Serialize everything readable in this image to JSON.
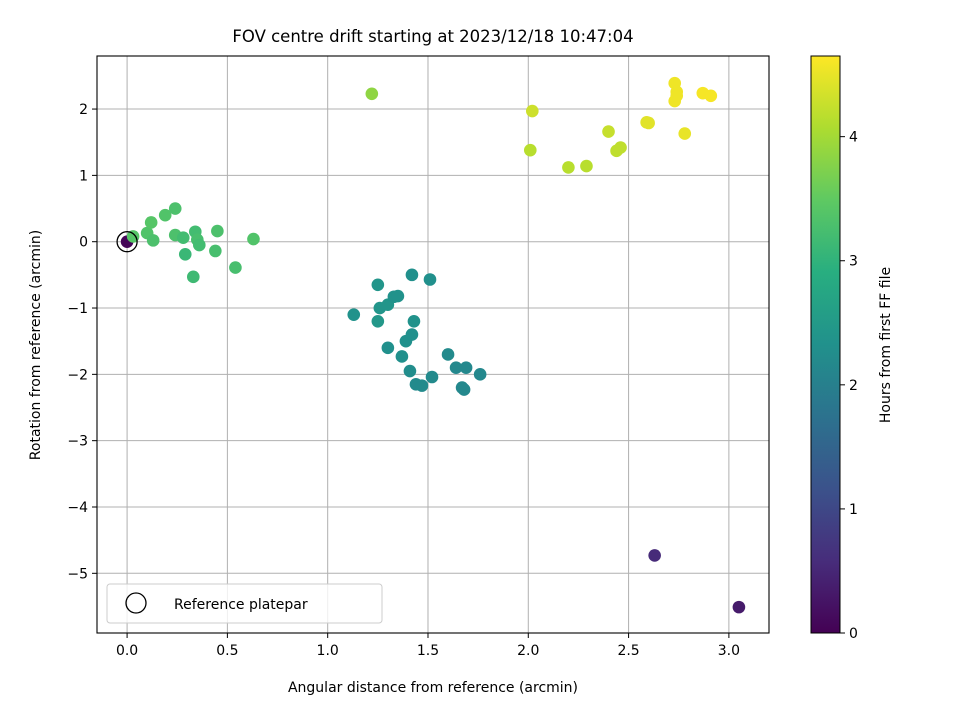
{
  "chart_data": {
    "type": "scatter",
    "title": "FOV centre drift starting at 2023/12/18 10:47:04",
    "xlabel": "Angular distance from reference (arcmin)",
    "ylabel": "Rotation from reference (arcmin)",
    "xlim": [
      -0.15,
      3.2
    ],
    "ylim": [
      -5.9,
      2.8
    ],
    "xticks": [
      "0.0",
      "0.5",
      "1.0",
      "1.5",
      "2.0",
      "2.5",
      "3.0"
    ],
    "xtick_values": [
      0,
      0.5,
      1.0,
      1.5,
      2.0,
      2.5,
      3.0
    ],
    "yticks": [
      "−5",
      "−4",
      "−3",
      "−2",
      "−1",
      "0",
      "1",
      "2"
    ],
    "ytick_values": [
      -5,
      -4,
      -3,
      -2,
      -1,
      0,
      1,
      2
    ],
    "grid": true,
    "legend": {
      "placement": "lower-left",
      "entries": [
        "Reference platepar"
      ]
    },
    "colorbar": {
      "label": "Hours from first FF file",
      "colormap": "viridis",
      "range": [
        0,
        4.65
      ],
      "ticks": [
        "0",
        "1",
        "2",
        "3",
        "4"
      ],
      "tick_values": [
        0,
        1,
        2,
        3,
        4
      ]
    },
    "reference_point": {
      "x": 0.0,
      "y": 0.0
    },
    "points": [
      {
        "x": 0.0,
        "y": 0.0,
        "hours": 0.05
      },
      {
        "x": 2.63,
        "y": -4.73,
        "hours": 0.55
      },
      {
        "x": 3.05,
        "y": -5.51,
        "hours": 0.35
      },
      {
        "x": 1.13,
        "y": -1.1,
        "hours": 2.35
      },
      {
        "x": 1.25,
        "y": -0.65,
        "hours": 2.4
      },
      {
        "x": 1.26,
        "y": -1.0,
        "hours": 2.4
      },
      {
        "x": 1.25,
        "y": -1.2,
        "hours": 2.45
      },
      {
        "x": 1.3,
        "y": -0.95,
        "hours": 2.4
      },
      {
        "x": 1.33,
        "y": -0.83,
        "hours": 2.35
      },
      {
        "x": 1.35,
        "y": -0.82,
        "hours": 2.35
      },
      {
        "x": 1.3,
        "y": -1.6,
        "hours": 2.3
      },
      {
        "x": 1.37,
        "y": -1.73,
        "hours": 2.3
      },
      {
        "x": 1.39,
        "y": -1.5,
        "hours": 2.3
      },
      {
        "x": 1.42,
        "y": -1.4,
        "hours": 2.3
      },
      {
        "x": 1.43,
        "y": -1.2,
        "hours": 2.35
      },
      {
        "x": 1.42,
        "y": -0.5,
        "hours": 2.3
      },
      {
        "x": 1.51,
        "y": -0.57,
        "hours": 2.3
      },
      {
        "x": 1.41,
        "y": -1.95,
        "hours": 2.25
      },
      {
        "x": 1.44,
        "y": -2.15,
        "hours": 2.2
      },
      {
        "x": 1.47,
        "y": -2.17,
        "hours": 2.2
      },
      {
        "x": 1.52,
        "y": -2.04,
        "hours": 2.2
      },
      {
        "x": 1.6,
        "y": -1.7,
        "hours": 2.2
      },
      {
        "x": 1.64,
        "y": -1.9,
        "hours": 2.15
      },
      {
        "x": 1.67,
        "y": -2.2,
        "hours": 2.15
      },
      {
        "x": 1.68,
        "y": -2.23,
        "hours": 2.15
      },
      {
        "x": 1.69,
        "y": -1.9,
        "hours": 2.15
      },
      {
        "x": 1.76,
        "y": -2.0,
        "hours": 2.15
      },
      {
        "x": 0.03,
        "y": 0.08,
        "hours": 3.4
      },
      {
        "x": 0.1,
        "y": 0.13,
        "hours": 3.35
      },
      {
        "x": 0.12,
        "y": 0.29,
        "hours": 3.4
      },
      {
        "x": 0.13,
        "y": 0.02,
        "hours": 3.3
      },
      {
        "x": 0.19,
        "y": 0.4,
        "hours": 3.35
      },
      {
        "x": 0.24,
        "y": 0.5,
        "hours": 3.3
      },
      {
        "x": 0.24,
        "y": 0.1,
        "hours": 3.3
      },
      {
        "x": 0.28,
        "y": 0.06,
        "hours": 3.2
      },
      {
        "x": 0.29,
        "y": -0.19,
        "hours": 3.1
      },
      {
        "x": 0.33,
        "y": -0.53,
        "hours": 3.15
      },
      {
        "x": 0.34,
        "y": 0.15,
        "hours": 3.2
      },
      {
        "x": 0.35,
        "y": 0.03,
        "hours": 3.25
      },
      {
        "x": 0.36,
        "y": -0.05,
        "hours": 3.2
      },
      {
        "x": 0.44,
        "y": -0.14,
        "hours": 3.25
      },
      {
        "x": 0.45,
        "y": 0.16,
        "hours": 3.3
      },
      {
        "x": 0.54,
        "y": -0.39,
        "hours": 3.25
      },
      {
        "x": 0.63,
        "y": 0.04,
        "hours": 3.35
      },
      {
        "x": 1.22,
        "y": 2.23,
        "hours": 3.85
      },
      {
        "x": 2.01,
        "y": 1.38,
        "hours": 4.15
      },
      {
        "x": 2.02,
        "y": 1.97,
        "hours": 4.3
      },
      {
        "x": 2.2,
        "y": 1.12,
        "hours": 4.15
      },
      {
        "x": 2.29,
        "y": 1.14,
        "hours": 4.15
      },
      {
        "x": 2.4,
        "y": 1.66,
        "hours": 4.25
      },
      {
        "x": 2.44,
        "y": 1.37,
        "hours": 4.2
      },
      {
        "x": 2.46,
        "y": 1.42,
        "hours": 4.2
      },
      {
        "x": 2.59,
        "y": 1.8,
        "hours": 4.45
      },
      {
        "x": 2.6,
        "y": 1.79,
        "hours": 4.45
      },
      {
        "x": 2.73,
        "y": 2.39,
        "hours": 4.55
      },
      {
        "x": 2.73,
        "y": 2.12,
        "hours": 4.55
      },
      {
        "x": 2.74,
        "y": 2.26,
        "hours": 4.55
      },
      {
        "x": 2.74,
        "y": 2.2,
        "hours": 4.55
      },
      {
        "x": 2.78,
        "y": 1.63,
        "hours": 4.5
      },
      {
        "x": 2.87,
        "y": 2.24,
        "hours": 4.6
      },
      {
        "x": 2.91,
        "y": 2.2,
        "hours": 4.6
      }
    ]
  }
}
